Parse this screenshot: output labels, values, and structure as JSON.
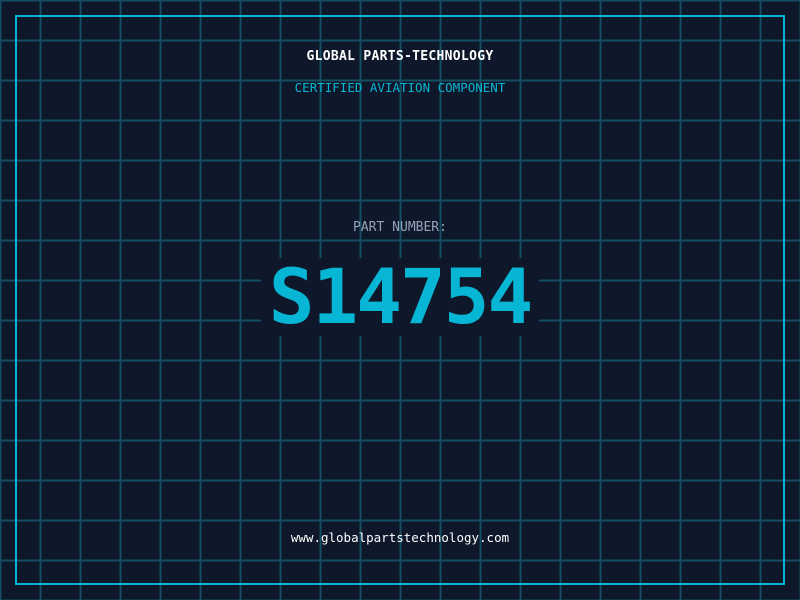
{
  "colors": {
    "background": "#0f172a",
    "grid": "#164e63",
    "accent": "#06b6d4",
    "label": "#94a3b8",
    "text": "#ffffff"
  },
  "header": {
    "title": "GLOBAL PARTS-TECHNOLOGY",
    "subtitle": "CERTIFIED AVIATION COMPONENT"
  },
  "part": {
    "label": "PART NUMBER:",
    "number": "S14754"
  },
  "footer": {
    "url": "www.globalpartstechnology.com"
  }
}
